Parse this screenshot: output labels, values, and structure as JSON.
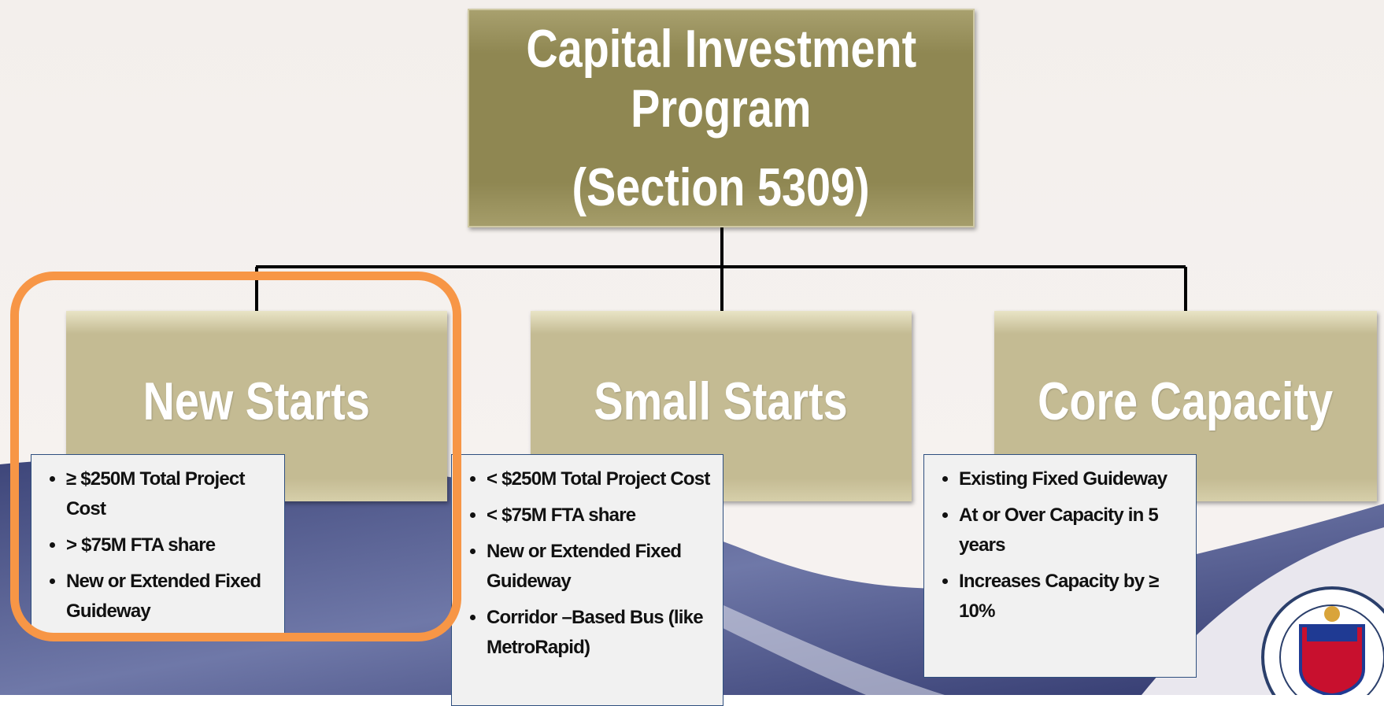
{
  "title": {
    "lines": [
      "Capital Investment",
      "Program",
      "(Section 5309)"
    ]
  },
  "programs": [
    {
      "name": "New Starts",
      "bullets": [
        "≥ $250M Total Project Cost",
        "> $75M FTA share",
        "New  or Extended Fixed Guideway"
      ]
    },
    {
      "name": "Small Starts",
      "bullets": [
        "< $250M Total Project Cost",
        "< $75M FTA share",
        "New  or Extended Fixed Guideway",
        "Corridor –Based Bus (like MetroRapid)"
      ]
    },
    {
      "name": "Core Capacity",
      "bullets": [
        "Existing Fixed Guideway",
        "At or Over Capacity in 5 years",
        "Increases Capacity by ≥ 10%"
      ]
    }
  ]
}
